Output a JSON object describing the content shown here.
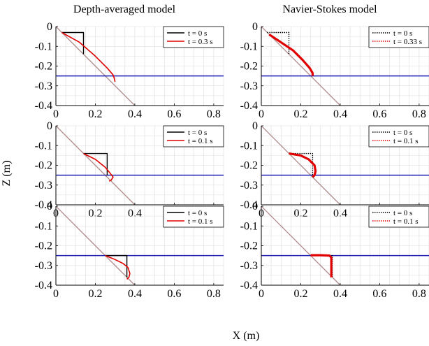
{
  "figure": {
    "column_titles": [
      "Depth-averaged model",
      "Navier-Stokes model"
    ],
    "xlabel": "X (m)",
    "ylabel": "Z (m)"
  },
  "colors": {
    "initial": "#000000",
    "evolved": "#e00000",
    "water_line": "#1f1fb4",
    "slope": "#b08a8a",
    "grid": "#dcdcdc"
  },
  "chart_data": [
    {
      "type": "line",
      "row": 0,
      "col": 0,
      "xlim": [
        0,
        0.85
      ],
      "ylim": [
        -0.4,
        0
      ],
      "xticks": [
        "0",
        "0.2",
        "0.4",
        "0.6",
        "0.8"
      ],
      "yticks": [
        "0",
        "-0.1",
        "-0.2",
        "-0.3",
        "-0.4"
      ],
      "water_level": -0.25,
      "slope_line": {
        "x": [
          0,
          0.4
        ],
        "y": [
          0,
          -0.4
        ]
      },
      "legend": [
        "t = 0 s",
        "t = 0.3 s"
      ],
      "series": [
        {
          "style": "solid",
          "color": "#000000",
          "x": [
            0.03,
            0.14,
            0.14
          ],
          "y": [
            -0.03,
            -0.03,
            -0.14
          ]
        },
        {
          "style": "solid",
          "color": "#e00000",
          "x": [
            0.03,
            0.12,
            0.2,
            0.26,
            0.29,
            0.295,
            0.3
          ],
          "y": [
            -0.03,
            -0.08,
            -0.15,
            -0.21,
            -0.245,
            -0.26,
            -0.28
          ]
        }
      ]
    },
    {
      "type": "line",
      "row": 0,
      "col": 1,
      "xlim": [
        0,
        0.85
      ],
      "ylim": [
        -0.4,
        0
      ],
      "xticks": [
        "0",
        "0.2",
        "0.4",
        "0.6",
        "0.8"
      ],
      "yticks": [
        "0",
        "-0.1",
        "-0.2",
        "-0.3",
        "-0.4"
      ],
      "water_level": -0.25,
      "slope_line": {
        "x": [
          0,
          0.4
        ],
        "y": [
          0,
          -0.4
        ]
      },
      "legend": [
        "t = 0 s",
        "t = 0.33 s"
      ],
      "series": [
        {
          "style": "dotted",
          "color": "#000000",
          "x": [
            0.03,
            0.14,
            0.14
          ],
          "y": [
            -0.03,
            -0.03,
            -0.14
          ]
        },
        {
          "style": "dotted",
          "color": "#e00000",
          "x": [
            0.04,
            0.1,
            0.16,
            0.21,
            0.245,
            0.26,
            0.26
          ],
          "y": [
            -0.04,
            -0.08,
            -0.12,
            -0.17,
            -0.21,
            -0.235,
            -0.25
          ]
        }
      ]
    },
    {
      "type": "line",
      "row": 1,
      "col": 0,
      "xlim": [
        0,
        0.85
      ],
      "ylim": [
        -0.4,
        0
      ],
      "xticks": [
        "0",
        "0.2",
        "0.4",
        "0.6",
        "0.8"
      ],
      "yticks": [
        "0",
        "-0.1",
        "-0.2",
        "-0.3",
        "-0.4"
      ],
      "water_level": -0.25,
      "slope_line": {
        "x": [
          0,
          0.4
        ],
        "y": [
          0,
          -0.4
        ]
      },
      "legend": [
        "t = 0 s",
        "t = 0.1 s"
      ],
      "series": [
        {
          "style": "solid",
          "color": "#000000",
          "x": [
            0.14,
            0.26,
            0.26
          ],
          "y": [
            -0.14,
            -0.14,
            -0.25
          ]
        },
        {
          "style": "solid",
          "color": "#e00000",
          "x": [
            0.14,
            0.2,
            0.25,
            0.275,
            0.29,
            0.28,
            0.27
          ],
          "y": [
            -0.14,
            -0.17,
            -0.21,
            -0.24,
            -0.26,
            -0.275,
            -0.28
          ]
        }
      ]
    },
    {
      "type": "line",
      "row": 1,
      "col": 1,
      "xlim": [
        0,
        0.85
      ],
      "ylim": [
        -0.4,
        0
      ],
      "xticks": [
        "0",
        "0.2",
        "0.4",
        "0.6",
        "0.8"
      ],
      "yticks": [
        "0",
        "-0.1",
        "-0.2",
        "-0.3",
        "-0.4"
      ],
      "water_level": -0.25,
      "slope_line": {
        "x": [
          0,
          0.4
        ],
        "y": [
          0,
          -0.4
        ]
      },
      "legend": [
        "t = 0 s",
        "t = 0.1 s"
      ],
      "series": [
        {
          "style": "dotted",
          "color": "#000000",
          "x": [
            0.14,
            0.26,
            0.26
          ],
          "y": [
            -0.14,
            -0.14,
            -0.26
          ]
        },
        {
          "style": "dotted",
          "color": "#e00000",
          "x": [
            0.14,
            0.2,
            0.24,
            0.27,
            0.275,
            0.27,
            0.26
          ],
          "y": [
            -0.14,
            -0.15,
            -0.17,
            -0.2,
            -0.23,
            -0.25,
            -0.26
          ]
        }
      ]
    },
    {
      "type": "line",
      "row": 2,
      "col": 0,
      "xlim": [
        0,
        0.85
      ],
      "ylim": [
        -0.4,
        0
      ],
      "xticks": [
        "0",
        "0.2",
        "0.4",
        "0.6",
        "0.8"
      ],
      "yticks": [
        "0",
        "-0.1",
        "-0.2",
        "-0.3",
        "-0.4"
      ],
      "water_level": -0.25,
      "slope_line": {
        "x": [
          0,
          0.4
        ],
        "y": [
          0,
          -0.4
        ]
      },
      "legend": [
        "t = 0 s",
        "t = 0.1 s"
      ],
      "series": [
        {
          "style": "solid",
          "color": "#000000",
          "x": [
            0.25,
            0.36,
            0.36
          ],
          "y": [
            -0.25,
            -0.25,
            -0.36
          ]
        },
        {
          "style": "solid",
          "color": "#e00000",
          "x": [
            0.25,
            0.3,
            0.34,
            0.365,
            0.375,
            0.37,
            0.36
          ],
          "y": [
            -0.25,
            -0.27,
            -0.29,
            -0.31,
            -0.34,
            -0.36,
            -0.37
          ]
        }
      ]
    },
    {
      "type": "line",
      "row": 2,
      "col": 1,
      "xlim": [
        0,
        0.85
      ],
      "ylim": [
        -0.4,
        0
      ],
      "xticks": [
        "0",
        "0.2",
        "0.4",
        "0.6",
        "0.8"
      ],
      "yticks": [
        "0",
        "-0.1",
        "-0.2",
        "-0.3",
        "-0.4"
      ],
      "water_level": -0.25,
      "slope_line": {
        "x": [
          0,
          0.4
        ],
        "y": [
          0,
          -0.4
        ]
      },
      "legend": [
        "t = 0 s",
        "t = 0.1 s"
      ],
      "series": [
        {
          "style": "dotted",
          "color": "#000000",
          "x": [
            0.25,
            0.36,
            0.36
          ],
          "y": [
            -0.25,
            -0.25,
            -0.36
          ]
        },
        {
          "style": "dotted",
          "color": "#e00000",
          "x": [
            0.25,
            0.3,
            0.345,
            0.355,
            0.355,
            0.355
          ],
          "y": [
            -0.248,
            -0.248,
            -0.25,
            -0.26,
            -0.3,
            -0.36
          ]
        }
      ]
    }
  ]
}
